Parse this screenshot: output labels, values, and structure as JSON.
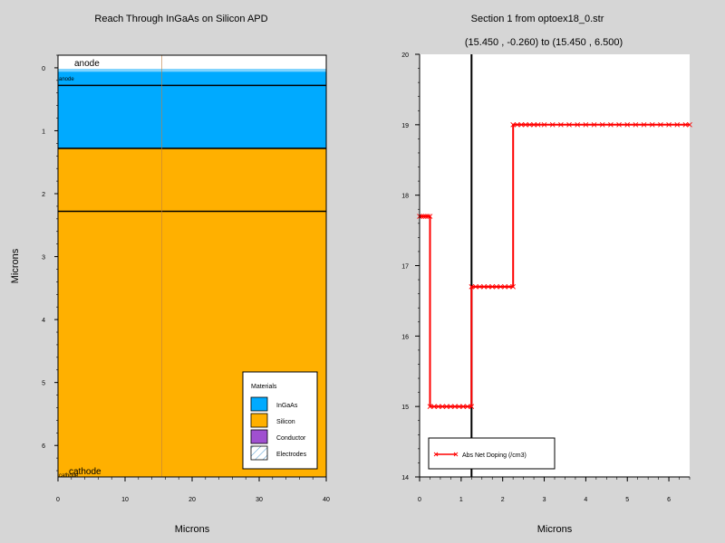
{
  "chart_data": [
    {
      "type": "heatmap",
      "title": "Reach Through InGaAs on Silicon APD",
      "xlabel": "Microns",
      "ylabel": "Microns",
      "xlim": [
        0,
        40
      ],
      "ylim": [
        6.5,
        -0.2
      ],
      "xticks": [
        "0",
        "10",
        "20",
        "30",
        "40"
      ],
      "yticks": [
        "0",
        "1",
        "2",
        "3",
        "4",
        "5",
        "6"
      ],
      "regions": [
        {
          "material": "Conductor",
          "label": "anode",
          "y0": -0.2,
          "y1": 0.02,
          "color": "#ffffff"
        },
        {
          "material": "InGaAs",
          "label": "anode",
          "y0": 0.02,
          "y1": 0.28,
          "color": "#00aaff"
        },
        {
          "material": "InGaAs",
          "label": "",
          "y0": 0.28,
          "y1": 1.28,
          "color": "#00aaff"
        },
        {
          "material": "Silicon",
          "label": "",
          "y0": 1.28,
          "y1": 2.28,
          "color": "#ffb000"
        },
        {
          "material": "Silicon",
          "label": "cathode",
          "y0": 2.28,
          "y1": 6.5,
          "color": "#ffb000"
        }
      ],
      "interfaces": [
        0.28,
        1.28,
        2.28
      ],
      "cutline_x": 15.45,
      "electrode_labels": [
        "anode",
        "anode",
        "cathode",
        "cathode"
      ],
      "legend": {
        "title": "Materials",
        "position": "bottom-right",
        "items": [
          {
            "name": "InGaAs",
            "color": "#00aaff",
            "pattern": "solid"
          },
          {
            "name": "Silicon",
            "color": "#ffb000",
            "pattern": "solid"
          },
          {
            "name": "Conductor",
            "color": "#a050d0",
            "pattern": "solid"
          },
          {
            "name": "Electrodes",
            "color": "#ffffff",
            "pattern": "hatch"
          }
        ]
      }
    },
    {
      "type": "line",
      "title": "Section 1 from optoex18_0.str",
      "subtitle": "(15.450 , -0.260) to (15.450 , 6.500)",
      "xlabel": "Microns",
      "ylabel": "",
      "xlim": [
        0,
        6.5
      ],
      "ylim": [
        14,
        20
      ],
      "xticks": [
        "0",
        "1",
        "2",
        "3",
        "4",
        "5",
        "6"
      ],
      "yticks": [
        "14",
        "15",
        "16",
        "17",
        "18",
        "19",
        "20"
      ],
      "vline_x": 1.25,
      "series": [
        {
          "name": "Abs Net Doping (/cm3)",
          "color": "#ff0000",
          "marker": "x",
          "points": [
            [
              0.0,
              17.7
            ],
            [
              0.05,
              17.7
            ],
            [
              0.1,
              17.7
            ],
            [
              0.15,
              17.7
            ],
            [
              0.2,
              17.7
            ],
            [
              0.25,
              17.7
            ],
            [
              0.25,
              15.0
            ],
            [
              0.35,
              15.0
            ],
            [
              0.45,
              15.0
            ],
            [
              0.55,
              15.0
            ],
            [
              0.65,
              15.0
            ],
            [
              0.75,
              15.0
            ],
            [
              0.85,
              15.0
            ],
            [
              0.95,
              15.0
            ],
            [
              1.05,
              15.0
            ],
            [
              1.15,
              15.0
            ],
            [
              1.25,
              15.0
            ],
            [
              1.25,
              16.7
            ],
            [
              1.35,
              16.7
            ],
            [
              1.45,
              16.7
            ],
            [
              1.55,
              16.7
            ],
            [
              1.65,
              16.7
            ],
            [
              1.75,
              16.7
            ],
            [
              1.85,
              16.7
            ],
            [
              1.95,
              16.7
            ],
            [
              2.05,
              16.7
            ],
            [
              2.15,
              16.7
            ],
            [
              2.25,
              16.7
            ],
            [
              2.25,
              19.0
            ],
            [
              2.35,
              19.0
            ],
            [
              2.45,
              19.0
            ],
            [
              2.55,
              19.0
            ],
            [
              2.65,
              19.0
            ],
            [
              2.75,
              19.0
            ],
            [
              2.85,
              19.0
            ],
            [
              3.0,
              19.0
            ],
            [
              3.2,
              19.0
            ],
            [
              3.4,
              19.0
            ],
            [
              3.6,
              19.0
            ],
            [
              3.8,
              19.0
            ],
            [
              4.0,
              19.0
            ],
            [
              4.2,
              19.0
            ],
            [
              4.4,
              19.0
            ],
            [
              4.6,
              19.0
            ],
            [
              4.8,
              19.0
            ],
            [
              5.0,
              19.0
            ],
            [
              5.2,
              19.0
            ],
            [
              5.4,
              19.0
            ],
            [
              5.6,
              19.0
            ],
            [
              5.8,
              19.0
            ],
            [
              6.0,
              19.0
            ],
            [
              6.2,
              19.0
            ],
            [
              6.4,
              19.0
            ],
            [
              6.5,
              19.0
            ]
          ]
        }
      ],
      "legend": {
        "position": "bottom-left"
      }
    }
  ]
}
